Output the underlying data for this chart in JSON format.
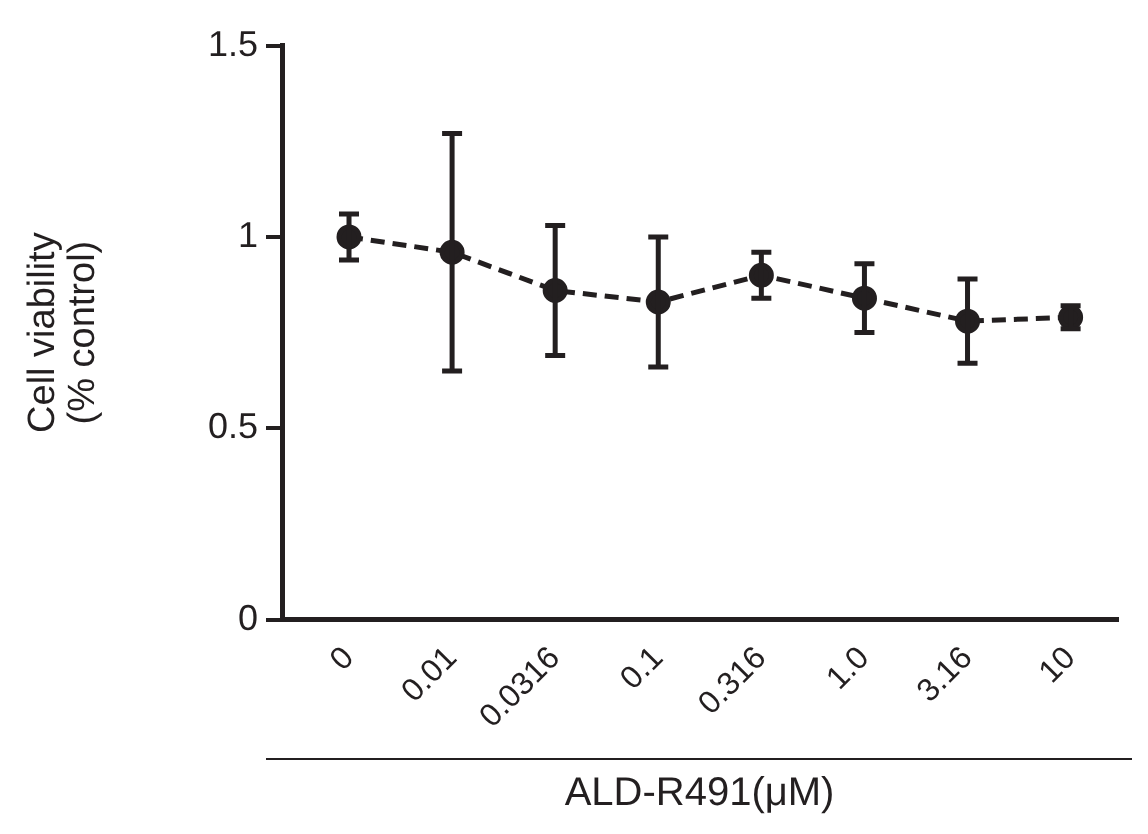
{
  "chart_data": {
    "type": "line",
    "xlabel": "ALD-R491(μM)",
    "ylabel": "Cell viability\n(% control)",
    "categories": [
      "0",
      "0.01",
      "0.0316",
      "0.1",
      "0.316",
      "1.0",
      "3.16",
      "10"
    ],
    "series": [
      {
        "color": "#231f20",
        "values": [
          1.0,
          0.96,
          0.86,
          0.83,
          0.9,
          0.84,
          0.78,
          0.79
        ],
        "errors": [
          0.06,
          0.31,
          0.17,
          0.17,
          0.06,
          0.09,
          0.11,
          0.03
        ]
      }
    ],
    "ylim": [
      0,
      1.5
    ],
    "yticks": [
      0,
      0.5,
      1,
      1.5
    ],
    "grid": false,
    "legend": false,
    "marker": "circle",
    "line_style": "dashed"
  }
}
